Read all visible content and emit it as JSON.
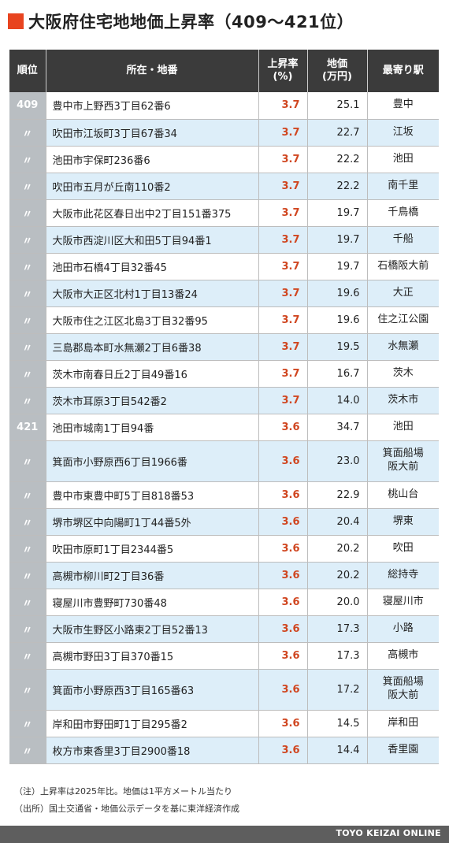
{
  "title": "大阪府住宅地地価上昇率（409～421位）",
  "chart_data": {
    "type": "table",
    "columns": [
      "順位",
      "所在・地番",
      "上昇率\n(%)",
      "地価\n(万円)",
      "最寄り駅"
    ],
    "rows": [
      {
        "rank": "409",
        "address": "豊中市上野西3丁目62番6",
        "rate": "3.7",
        "price": "25.1",
        "station": "豊中"
      },
      {
        "rank": "〃",
        "address": "吹田市江坂町3丁目67番34",
        "rate": "3.7",
        "price": "22.7",
        "station": "江坂"
      },
      {
        "rank": "〃",
        "address": "池田市宇保町236番6",
        "rate": "3.7",
        "price": "22.2",
        "station": "池田"
      },
      {
        "rank": "〃",
        "address": "吹田市五月が丘南110番2",
        "rate": "3.7",
        "price": "22.2",
        "station": "南千里"
      },
      {
        "rank": "〃",
        "address": "大阪市此花区春日出中2丁目151番375",
        "rate": "3.7",
        "price": "19.7",
        "station": "千鳥橋"
      },
      {
        "rank": "〃",
        "address": "大阪市西淀川区大和田5丁目94番1",
        "rate": "3.7",
        "price": "19.7",
        "station": "千船"
      },
      {
        "rank": "〃",
        "address": "池田市石橋4丁目32番45",
        "rate": "3.7",
        "price": "19.7",
        "station": "石橋阪大前"
      },
      {
        "rank": "〃",
        "address": "大阪市大正区北村1丁目13番24",
        "rate": "3.7",
        "price": "19.6",
        "station": "大正"
      },
      {
        "rank": "〃",
        "address": "大阪市住之江区北島3丁目32番95",
        "rate": "3.7",
        "price": "19.6",
        "station": "住之江公園"
      },
      {
        "rank": "〃",
        "address": "三島郡島本町水無瀬2丁目6番38",
        "rate": "3.7",
        "price": "19.5",
        "station": "水無瀬"
      },
      {
        "rank": "〃",
        "address": "茨木市南春日丘2丁目49番16",
        "rate": "3.7",
        "price": "16.7",
        "station": "茨木"
      },
      {
        "rank": "〃",
        "address": "茨木市耳原3丁目542番2",
        "rate": "3.7",
        "price": "14.0",
        "station": "茨木市"
      },
      {
        "rank": "421",
        "address": "池田市城南1丁目94番",
        "rate": "3.6",
        "price": "34.7",
        "station": "池田"
      },
      {
        "rank": "〃",
        "address": "箕面市小野原西6丁目1966番",
        "rate": "3.6",
        "price": "23.0",
        "station": "箕面船場\n阪大前"
      },
      {
        "rank": "〃",
        "address": "豊中市東豊中町5丁目818番53",
        "rate": "3.6",
        "price": "22.9",
        "station": "桃山台"
      },
      {
        "rank": "〃",
        "address": "堺市堺区中向陽町1丁44番5外",
        "rate": "3.6",
        "price": "20.4",
        "station": "堺東"
      },
      {
        "rank": "〃",
        "address": "吹田市原町1丁目2344番5",
        "rate": "3.6",
        "price": "20.2",
        "station": "吹田"
      },
      {
        "rank": "〃",
        "address": "高槻市柳川町2丁目36番",
        "rate": "3.6",
        "price": "20.2",
        "station": "総持寺"
      },
      {
        "rank": "〃",
        "address": "寝屋川市豊野町730番48",
        "rate": "3.6",
        "price": "20.0",
        "station": "寝屋川市"
      },
      {
        "rank": "〃",
        "address": "大阪市生野区小路東2丁目52番13",
        "rate": "3.6",
        "price": "17.3",
        "station": "小路"
      },
      {
        "rank": "〃",
        "address": "高槻市野田3丁目370番15",
        "rate": "3.6",
        "price": "17.3",
        "station": "高槻市"
      },
      {
        "rank": "〃",
        "address": "箕面市小野原西3丁目165番63",
        "rate": "3.6",
        "price": "17.2",
        "station": "箕面船場\n阪大前"
      },
      {
        "rank": "〃",
        "address": "岸和田市野田町1丁目295番2",
        "rate": "3.6",
        "price": "14.5",
        "station": "岸和田"
      },
      {
        "rank": "〃",
        "address": "枚方市東香里3丁目2900番18",
        "rate": "3.6",
        "price": "14.4",
        "station": "香里園"
      }
    ]
  },
  "notes": [
    "（注）上昇率は2025年比。地価は1平方メートル当たり",
    "（出所）国土交通省・地価公示データを基に東洋経済作成"
  ],
  "footer": {
    "brand": "TOYO KEIZAI ONLINE"
  },
  "colors": {
    "accent": "#e8441f",
    "header_bg": "#3b3b3b",
    "rate_text": "#d04620",
    "stripe": "#ddeef9",
    "rank_bg": "#b9bec2",
    "footer_bg": "#5e5e5e"
  }
}
